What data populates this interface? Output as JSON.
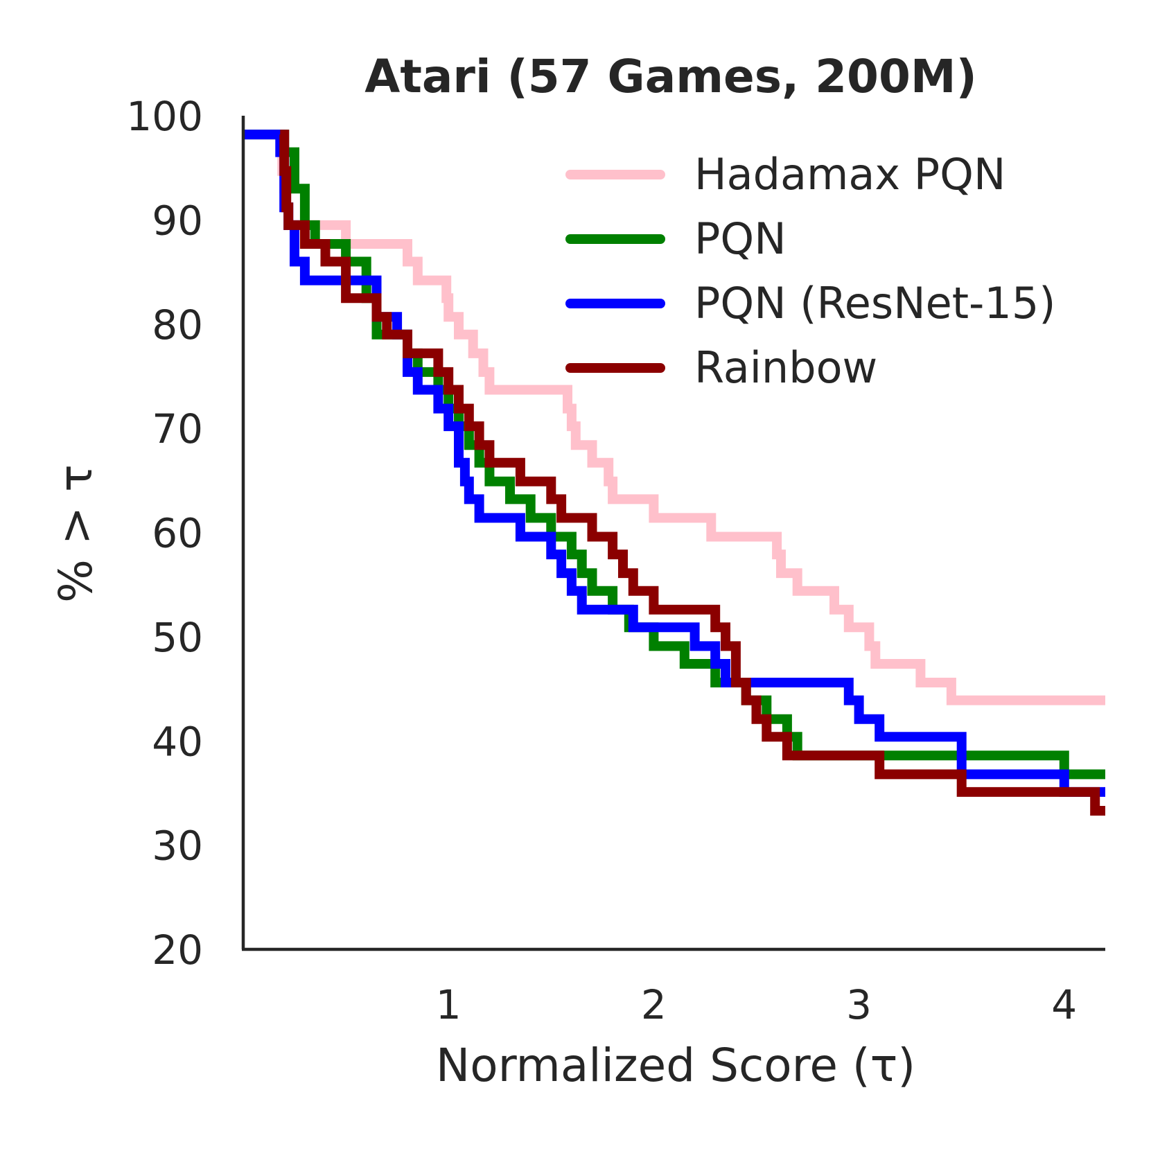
{
  "chart_data": {
    "type": "line",
    "step": true,
    "title": "Atari (57 Games, 200M)",
    "xlabel": "Normalized Score (τ)",
    "ylabel": "% > τ",
    "xlim": [
      0,
      4.2
    ],
    "ylim": [
      20,
      100
    ],
    "xticks": [
      1,
      2,
      3,
      4
    ],
    "yticks": [
      20,
      30,
      40,
      50,
      60,
      70,
      80,
      90,
      100
    ],
    "grid": false,
    "legend_position": "top-right",
    "series": [
      {
        "name": "Hadamax PQN",
        "color": "#ffc0cb",
        "x": [
          0,
          0.18,
          0.19,
          0.2,
          0.21,
          0.22,
          0.24,
          0.3,
          0.5,
          0.6,
          0.7,
          0.8,
          0.82,
          0.85,
          0.95,
          0.99,
          1.0,
          1.02,
          1.05,
          1.1,
          1.12,
          1.15,
          1.17,
          1.2,
          1.5,
          1.58,
          1.6,
          1.62,
          1.65,
          1.7,
          1.75,
          1.78,
          1.8,
          1.9,
          2.0,
          2.2,
          2.28,
          2.5,
          2.6,
          2.62,
          2.65,
          2.7,
          2.8,
          2.88,
          2.9,
          2.95,
          3.0,
          3.05,
          3.08,
          3.1,
          3.3,
          3.35,
          3.45,
          3.5,
          4.0,
          4.2
        ],
        "y": [
          98.2,
          98.2,
          94.7,
          93.0,
          91.2,
          89.5,
          89.5,
          89.5,
          87.7,
          87.7,
          87.7,
          86.0,
          86.0,
          84.2,
          84.2,
          82.5,
          80.7,
          80.7,
          79.0,
          79.0,
          77.2,
          77.2,
          75.4,
          73.7,
          73.7,
          71.9,
          70.2,
          68.4,
          68.4,
          66.7,
          66.7,
          64.9,
          63.2,
          63.2,
          61.4,
          61.4,
          59.6,
          59.6,
          57.9,
          56.1,
          56.1,
          54.4,
          54.4,
          52.6,
          52.6,
          50.9,
          50.9,
          49.1,
          47.4,
          47.4,
          45.6,
          45.6,
          43.9,
          43.9,
          43.9,
          43.9
        ]
      },
      {
        "name": "PQN",
        "color": "#008000",
        "x": [
          0,
          0.18,
          0.2,
          0.25,
          0.3,
          0.35,
          0.45,
          0.5,
          0.6,
          0.65,
          0.75,
          0.8,
          0.85,
          0.95,
          1.0,
          1.05,
          1.1,
          1.15,
          1.2,
          1.3,
          1.4,
          1.5,
          1.6,
          1.65,
          1.7,
          1.8,
          1.88,
          2.0,
          2.15,
          2.3,
          2.4,
          2.45,
          2.55,
          2.6,
          2.65,
          2.7,
          2.8,
          3.0,
          3.5,
          3.95,
          4.0,
          4.2
        ],
        "y": [
          98.2,
          98.2,
          96.5,
          93.0,
          89.5,
          87.7,
          87.7,
          86.0,
          82.5,
          79.0,
          79.0,
          77.2,
          75.4,
          73.7,
          71.9,
          70.2,
          68.4,
          66.7,
          64.9,
          63.2,
          61.4,
          59.6,
          57.9,
          56.1,
          54.4,
          52.6,
          50.9,
          49.1,
          47.4,
          45.6,
          45.6,
          43.9,
          42.1,
          42.1,
          40.4,
          38.6,
          38.6,
          38.6,
          38.6,
          38.6,
          36.8,
          36.8
        ]
      },
      {
        "name": "PQN (ResNet-15)",
        "color": "#0000ff",
        "x": [
          0,
          0.15,
          0.18,
          0.2,
          0.22,
          0.25,
          0.28,
          0.3,
          0.35,
          0.5,
          0.6,
          0.65,
          0.75,
          0.8,
          0.85,
          0.95,
          1.0,
          1.05,
          1.08,
          1.1,
          1.15,
          1.2,
          1.35,
          1.5,
          1.55,
          1.6,
          1.65,
          1.7,
          1.8,
          1.9,
          2.0,
          2.15,
          2.2,
          2.3,
          2.35,
          2.5,
          2.6,
          2.8,
          2.95,
          3.0,
          3.1,
          3.5,
          3.95,
          4.0,
          4.2
        ],
        "y": [
          98.2,
          98.2,
          96.5,
          91.2,
          89.5,
          86.0,
          86.0,
          84.2,
          84.2,
          84.2,
          84.2,
          80.7,
          79.0,
          75.4,
          73.7,
          71.9,
          70.2,
          66.7,
          64.9,
          63.2,
          61.4,
          61.4,
          59.6,
          57.9,
          56.1,
          54.4,
          52.6,
          52.6,
          52.6,
          50.9,
          50.9,
          50.9,
          49.1,
          47.4,
          45.6,
          45.6,
          45.6,
          45.6,
          43.9,
          42.1,
          40.4,
          36.8,
          36.8,
          35.1,
          35.1
        ]
      },
      {
        "name": "Rainbow",
        "color": "#8b0000",
        "x": [
          0.18,
          0.2,
          0.21,
          0.22,
          0.25,
          0.3,
          0.35,
          0.4,
          0.45,
          0.5,
          0.55,
          0.6,
          0.65,
          0.7,
          0.75,
          0.8,
          0.95,
          1.0,
          1.05,
          1.1,
          1.15,
          1.2,
          1.35,
          1.4,
          1.5,
          1.55,
          1.6,
          1.7,
          1.8,
          1.85,
          1.9,
          2.0,
          2.1,
          2.2,
          2.3,
          2.35,
          2.4,
          2.45,
          2.5,
          2.55,
          2.65,
          3.0,
          3.1,
          3.3,
          3.5,
          4.0,
          4.1,
          4.15,
          4.2
        ],
        "y": [
          98.2,
          94.7,
          91.2,
          89.5,
          89.5,
          87.7,
          87.7,
          86.0,
          86.0,
          82.5,
          82.5,
          82.5,
          80.7,
          79.0,
          79.0,
          77.2,
          75.4,
          73.7,
          71.9,
          70.2,
          68.4,
          66.7,
          64.9,
          64.9,
          63.2,
          61.4,
          61.4,
          59.6,
          57.9,
          56.1,
          54.4,
          52.6,
          52.6,
          52.6,
          50.9,
          49.1,
          45.6,
          43.9,
          42.1,
          40.4,
          38.6,
          38.6,
          36.8,
          36.8,
          35.1,
          35.1,
          35.1,
          33.3,
          33.3
        ]
      }
    ]
  }
}
